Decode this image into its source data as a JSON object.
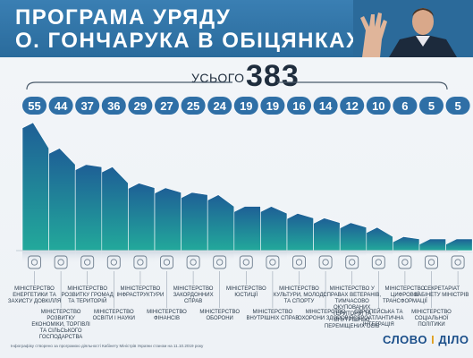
{
  "header": {
    "title_line1": "ПРОГРАМА УРЯДУ",
    "title_line2": "О. ГОНЧАРУКА В ОБІЦЯНКАХ"
  },
  "total": {
    "label": "УСЬОГО",
    "value": "383"
  },
  "chart_data": {
    "type": "area",
    "categories": [
      "Міністерство енергетики та захисту довкілля",
      "Міністерство розвитку економіки, торгівлі та сільського господарства",
      "Міністерство розвитку громад та територій",
      "Міністерство освіти і науки",
      "Міністерство інфраструктури",
      "Міністерство фінансів",
      "Міністерство закордонних справ",
      "Міністерство оборони",
      "Міністерство юстиції",
      "Міністерство внутрішніх справ",
      "Міністерство культури, молоді та спорту",
      "Міністерство охорони здоров'я",
      "Міністерство у справах ветеранів, тимчасово окупованих територій та внутрішньо переміщених осіб",
      "Європейська та євроатлантична інтеграція",
      "Міністерство цифрової трансформації",
      "Міністерство соціальної політики",
      "Секретаріат Кабінету Міністрів"
    ],
    "values": [
      55,
      44,
      37,
      36,
      29,
      27,
      25,
      24,
      19,
      19,
      16,
      14,
      12,
      10,
      6,
      5,
      5
    ],
    "title": "ПРОГРАМА УРЯДУ О. ГОНЧАРУКА В ОБІЦЯНКАХ",
    "ylim": [
      0,
      55
    ],
    "grid": false,
    "colors": {
      "top": "#1e5f96",
      "bottom": "#22a99b",
      "pill": "#2f6fa6"
    }
  },
  "icons": [
    "power-tower-icon",
    "shopping-cart-icon",
    "ukraine-map-icon",
    "graduation-cap-icon",
    "train-icon",
    "banknotes-icon",
    "globe-icon",
    "shield-icon",
    "scales-icon",
    "police-badge-icon",
    "theater-masks-icon",
    "health-heart-icon",
    "veteran-icon",
    "eu-stars-icon",
    "computer-icon",
    "people-icon",
    "document-icon"
  ],
  "footnote": "Інфографіку створено за програмою діяльності Кабінету Міністрів України станом на 11.10.2019 року",
  "logo": {
    "part1": "СЛОВО",
    "sep": "І",
    "part2": "ДІЛО"
  }
}
